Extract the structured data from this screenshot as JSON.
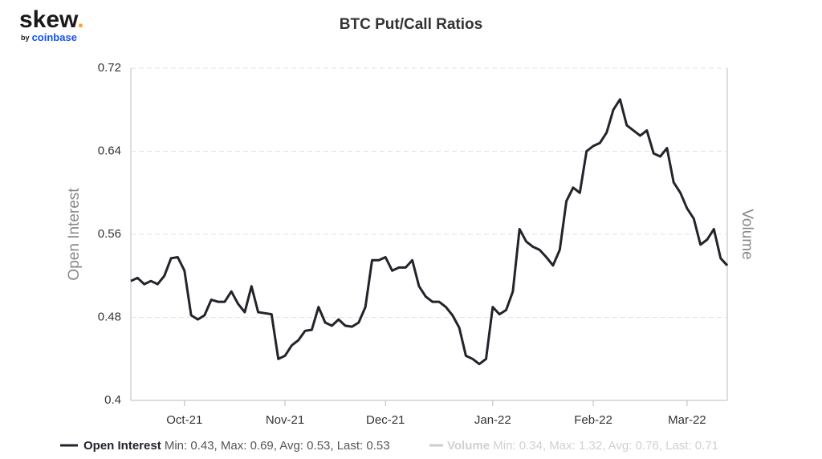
{
  "logo": {
    "name": "skew",
    "dot": ".",
    "by": "by",
    "brand": "coinbase"
  },
  "chart_data": {
    "type": "line",
    "title": "BTC Put/Call Ratios",
    "y_label": "Open Interest",
    "y2_label": "Volume",
    "categories": [
      null,
      null,
      null,
      null,
      null,
      null,
      null,
      null,
      "Oct-21",
      null,
      null,
      null,
      null,
      null,
      null,
      null,
      null,
      null,
      null,
      null,
      null,
      null,
      null,
      "Nov-21",
      null,
      null,
      null,
      null,
      null,
      null,
      null,
      null,
      null,
      null,
      null,
      null,
      null,
      null,
      "Dec-21",
      null,
      null,
      null,
      null,
      null,
      null,
      null,
      null,
      null,
      null,
      null,
      null,
      null,
      null,
      null,
      "Jan-22",
      null,
      null,
      null,
      null,
      null,
      null,
      null,
      null,
      null,
      null,
      null,
      null,
      null,
      null,
      "Feb-22",
      null,
      null,
      null,
      null,
      null,
      null,
      null,
      null,
      null,
      null,
      null,
      null,
      null,
      "Mar-22",
      null,
      null,
      null,
      null,
      null,
      null
    ],
    "series": [
      {
        "name": "Open Interest",
        "color": "#23232b",
        "stats": "Min: 0.43, Max: 0.69, Avg: 0.53, Last: 0.53",
        "values": [
          0.515,
          0.518,
          0.512,
          0.515,
          0.512,
          0.52,
          0.537,
          0.538,
          0.525,
          0.482,
          0.478,
          0.482,
          0.497,
          0.495,
          0.495,
          0.505,
          0.493,
          0.485,
          0.51,
          0.485,
          0.484,
          0.483,
          0.44,
          0.443,
          0.453,
          0.458,
          0.467,
          0.468,
          0.49,
          0.475,
          0.472,
          0.478,
          0.472,
          0.471,
          0.475,
          0.49,
          0.535,
          0.535,
          0.538,
          0.525,
          0.528,
          0.528,
          0.535,
          0.51,
          0.5,
          0.495,
          0.495,
          0.49,
          0.482,
          0.47,
          0.443,
          0.44,
          0.435,
          0.44,
          0.49,
          0.483,
          0.487,
          0.505,
          0.565,
          0.553,
          0.548,
          0.545,
          0.538,
          0.53,
          0.545,
          0.592,
          0.605,
          0.6,
          0.64,
          0.645,
          0.648,
          0.658,
          0.68,
          0.69,
          0.665,
          0.66,
          0.655,
          0.66,
          0.638,
          0.635,
          0.643,
          0.61,
          0.6,
          0.585,
          0.575,
          0.55,
          0.555,
          0.565,
          0.537,
          0.53
        ]
      }
    ],
    "hidden_series": [
      {
        "name": "Volume",
        "color": "#d0d0d0",
        "stats": "Min: 0.34, Max: 1.32, Avg: 0.76, Last: 0.71"
      }
    ],
    "ylim": [
      0.4,
      0.72
    ],
    "yticks": [
      0.4,
      0.48,
      0.56,
      0.64,
      0.72
    ],
    "grid": true
  }
}
